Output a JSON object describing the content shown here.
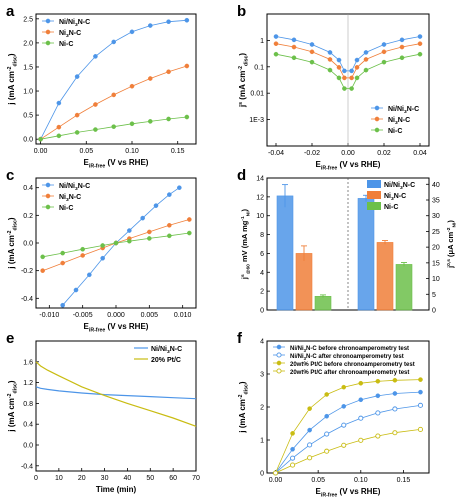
{
  "colors": {
    "blue": "#4d95e8",
    "orange": "#f07f3a",
    "green": "#6cc04a",
    "olive": "#c9bc12",
    "axis": "#000000"
  },
  "chart_data": [
    {
      "panel_label": "a",
      "type": "line",
      "xlabel": "E_iR-free (V vs RHE)",
      "ylabel": "j (mA cm^-2_disc)",
      "xlim": [
        -0.005,
        0.17
      ],
      "ylim": [
        -0.1,
        2.6
      ],
      "xticks": [
        "0.00",
        "0.05",
        "0.10",
        "0.15"
      ],
      "yticks": [
        "0.0",
        "0.5",
        "1.0",
        "1.5",
        "2.0",
        "2.5"
      ],
      "legend": [
        "Ni/Ni3N-C",
        "Ni3N-C",
        "Ni-C"
      ],
      "legend_position": "top-left",
      "series": [
        {
          "name": "Ni/Ni3N-C",
          "x": [
            0,
            0.02,
            0.04,
            0.06,
            0.08,
            0.1,
            0.12,
            0.14,
            0.16
          ],
          "y": [
            0,
            0.75,
            1.3,
            1.72,
            2.02,
            2.23,
            2.36,
            2.44,
            2.47
          ]
        },
        {
          "name": "Ni3N-C",
          "x": [
            0,
            0.02,
            0.04,
            0.06,
            0.08,
            0.1,
            0.12,
            0.14,
            0.16
          ],
          "y": [
            0,
            0.25,
            0.5,
            0.72,
            0.92,
            1.1,
            1.26,
            1.4,
            1.52
          ]
        },
        {
          "name": "Ni-C",
          "x": [
            0,
            0.02,
            0.04,
            0.06,
            0.08,
            0.1,
            0.12,
            0.14,
            0.16
          ],
          "y": [
            0,
            0.07,
            0.14,
            0.2,
            0.26,
            0.32,
            0.37,
            0.42,
            0.46
          ]
        }
      ]
    },
    {
      "panel_label": "b",
      "type": "line",
      "yscale": "log",
      "xlabel": "E_iR-free (V vs RHE)",
      "ylabel": "j^s (mA cm^-2_disc)",
      "xlim": [
        -0.045,
        0.045
      ],
      "ylim": [
        0.0001,
        10
      ],
      "xticks": [
        "-0.04",
        "-0.02",
        "0.00",
        "0.02",
        "0.04"
      ],
      "yticks": [
        "1E-3",
        "0.01",
        "0.1",
        "1"
      ],
      "legend": [
        "Ni/Ni3N-C",
        "Ni3N-C",
        "Ni-C"
      ],
      "legend_position": "bottom-right",
      "series": [
        {
          "name": "Ni/Ni3N-C",
          "x": [
            -0.04,
            -0.03,
            -0.02,
            -0.01,
            -0.005,
            -0.002,
            0.002,
            0.005,
            0.01,
            0.02,
            0.03,
            0.04
          ],
          "y": [
            1.4,
            1.05,
            0.7,
            0.35,
            0.18,
            0.07,
            0.07,
            0.18,
            0.35,
            0.7,
            1.05,
            1.4
          ]
        },
        {
          "name": "Ni3N-C",
          "x": [
            -0.04,
            -0.03,
            -0.02,
            -0.01,
            -0.005,
            -0.002,
            0.002,
            0.005,
            0.01,
            0.02,
            0.03,
            0.04
          ],
          "y": [
            0.75,
            0.56,
            0.37,
            0.19,
            0.095,
            0.038,
            0.038,
            0.095,
            0.19,
            0.37,
            0.56,
            0.75
          ]
        },
        {
          "name": "Ni-C",
          "x": [
            -0.04,
            -0.03,
            -0.02,
            -0.01,
            -0.005,
            -0.002,
            0.002,
            0.005,
            0.01,
            0.02,
            0.03,
            0.04
          ],
          "y": [
            0.3,
            0.22,
            0.15,
            0.075,
            0.038,
            0.015,
            0.015,
            0.038,
            0.075,
            0.15,
            0.22,
            0.3
          ]
        }
      ]
    },
    {
      "panel_label": "c",
      "type": "line",
      "xlabel": "E_iR-free (V vs RHE)",
      "ylabel": "j (mA cm^-2_disc)",
      "xlim": [
        -0.012,
        0.012
      ],
      "ylim": [
        -0.47,
        0.47
      ],
      "xticks": [
        "-0.010",
        "-0.005",
        "0.000",
        "0.005",
        "0.010"
      ],
      "yticks": [
        "-0.4",
        "-0.2",
        "0.0",
        "0.2",
        "0.4"
      ],
      "legend": [
        "Ni/Ni3N-C",
        "Ni3N-C",
        "Ni-C"
      ],
      "legend_position": "top-left",
      "series": [
        {
          "name": "Ni/Ni3N-C",
          "x": [
            -0.008,
            -0.006,
            -0.004,
            -0.002,
            0,
            0.002,
            0.004,
            0.006,
            0.008,
            0.0095
          ],
          "y": [
            -0.45,
            -0.34,
            -0.23,
            -0.11,
            0,
            0.09,
            0.18,
            0.27,
            0.35,
            0.4
          ]
        },
        {
          "name": "Ni3N-C",
          "x": [
            -0.011,
            -0.008,
            -0.005,
            -0.002,
            0,
            0.002,
            0.005,
            0.008,
            0.011
          ],
          "y": [
            -0.2,
            -0.145,
            -0.09,
            -0.036,
            0,
            0.032,
            0.08,
            0.128,
            0.17
          ]
        },
        {
          "name": "Ni-C",
          "x": [
            -0.011,
            -0.008,
            -0.005,
            -0.002,
            0,
            0.002,
            0.005,
            0.008,
            0.011
          ],
          "y": [
            -0.1,
            -0.073,
            -0.045,
            -0.018,
            0,
            0.013,
            0.033,
            0.052,
            0.072
          ]
        }
      ]
    },
    {
      "panel_label": "d",
      "type": "bar",
      "ylabel": "j^s_@60 mV (mA mg^-1_Ni)",
      "y2label": "j^0,s (μA cm^-2_Ni)",
      "ylim": [
        0,
        14
      ],
      "y2lim": [
        0,
        42
      ],
      "yticks": [
        "0",
        "2",
        "4",
        "6",
        "8",
        "10",
        "12",
        "14"
      ],
      "y2ticks": [
        "0",
        "5",
        "10",
        "15",
        "20",
        "25",
        "30",
        "35",
        "40"
      ],
      "legend": [
        "Ni/Ni3N-C",
        "Ni3N-C",
        "Ni-C"
      ],
      "legend_position": "top-right",
      "series": [
        {
          "name": "Ni/Ni3N-C",
          "left": 12.1,
          "left_err": 1.2,
          "right": 35.5,
          "right_err": 1.0
        },
        {
          "name": "Ni3N-C",
          "left": 6.0,
          "left_err": 0.8,
          "right": 21.5,
          "right_err": 0.6
        },
        {
          "name": "Ni-C",
          "left": 1.45,
          "left_err": 0.15,
          "right": 14.5,
          "right_err": 0.6
        }
      ]
    },
    {
      "panel_label": "e",
      "type": "line",
      "xlabel": "Time (min)",
      "ylabel": "j (mA cm^-2_disc)",
      "xlim": [
        0,
        70
      ],
      "ylim": [
        -0.5,
        2.0
      ],
      "xticks": [
        "0",
        "10",
        "20",
        "30",
        "40",
        "50",
        "60",
        "70"
      ],
      "yticks": [
        "-0.4",
        "0.0",
        "0.4",
        "0.8",
        "1.2",
        "1.6"
      ],
      "legend": [
        "Ni/Ni3N-C",
        "20% Pt/C"
      ],
      "legend_position": "top-right",
      "series": [
        {
          "name": "Ni/Ni3N-C",
          "x": [
            0,
            2,
            5,
            10,
            20,
            30,
            40,
            50,
            60,
            70
          ],
          "y": [
            1.12,
            1.09,
            1.07,
            1.04,
            1.0,
            0.97,
            0.95,
            0.93,
            0.91,
            0.89
          ]
        },
        {
          "name": "20% Pt/C",
          "x": [
            0,
            2,
            5,
            10,
            20,
            30,
            40,
            50,
            60,
            70
          ],
          "y": [
            1.6,
            1.52,
            1.44,
            1.33,
            1.12,
            0.95,
            0.8,
            0.66,
            0.52,
            0.36
          ]
        }
      ]
    },
    {
      "panel_label": "f",
      "type": "line",
      "xlabel": "E_iR-free (V vs RHE)",
      "ylabel": "j (mA cm^-2_disc)",
      "xlim": [
        -0.01,
        0.18
      ],
      "ylim": [
        0,
        4
      ],
      "xticks": [
        "0.00",
        "0.05",
        "0.10",
        "0.15"
      ],
      "yticks": [
        "0",
        "1",
        "2",
        "3",
        "4"
      ],
      "legend": [
        "Ni/Ni3N-C before chronoamperometry test",
        "Ni/Ni3N-C after chronoamperometry test",
        "20wt% Pt/C before chronoamperometry test",
        "20wt% Pt/C after chronoamperometry test"
      ],
      "legend_position": "top",
      "series": [
        {
          "name": "Ni/Ni3N-C before chronoamperometry test",
          "x": [
            0,
            0.02,
            0.04,
            0.06,
            0.08,
            0.1,
            0.12,
            0.14,
            0.17
          ],
          "y": [
            0,
            0.72,
            1.3,
            1.72,
            2.02,
            2.22,
            2.34,
            2.41,
            2.45
          ]
        },
        {
          "name": "Ni/Ni3N-C after chronoamperometry test",
          "x": [
            0,
            0.02,
            0.04,
            0.06,
            0.08,
            0.1,
            0.12,
            0.14,
            0.17
          ],
          "y": [
            0,
            0.45,
            0.85,
            1.18,
            1.45,
            1.66,
            1.82,
            1.94,
            2.05
          ]
        },
        {
          "name": "20wt% Pt/C before chronoamperometry test",
          "x": [
            0,
            0.02,
            0.04,
            0.06,
            0.08,
            0.1,
            0.12,
            0.14,
            0.17
          ],
          "y": [
            0,
            1.2,
            1.95,
            2.38,
            2.6,
            2.72,
            2.78,
            2.81,
            2.83
          ]
        },
        {
          "name": "20wt% Pt/C after chronoamperometry test",
          "x": [
            0,
            0.02,
            0.04,
            0.06,
            0.08,
            0.1,
            0.12,
            0.14,
            0.17
          ],
          "y": [
            0,
            0.24,
            0.46,
            0.66,
            0.84,
            0.99,
            1.12,
            1.22,
            1.32
          ]
        }
      ]
    }
  ]
}
